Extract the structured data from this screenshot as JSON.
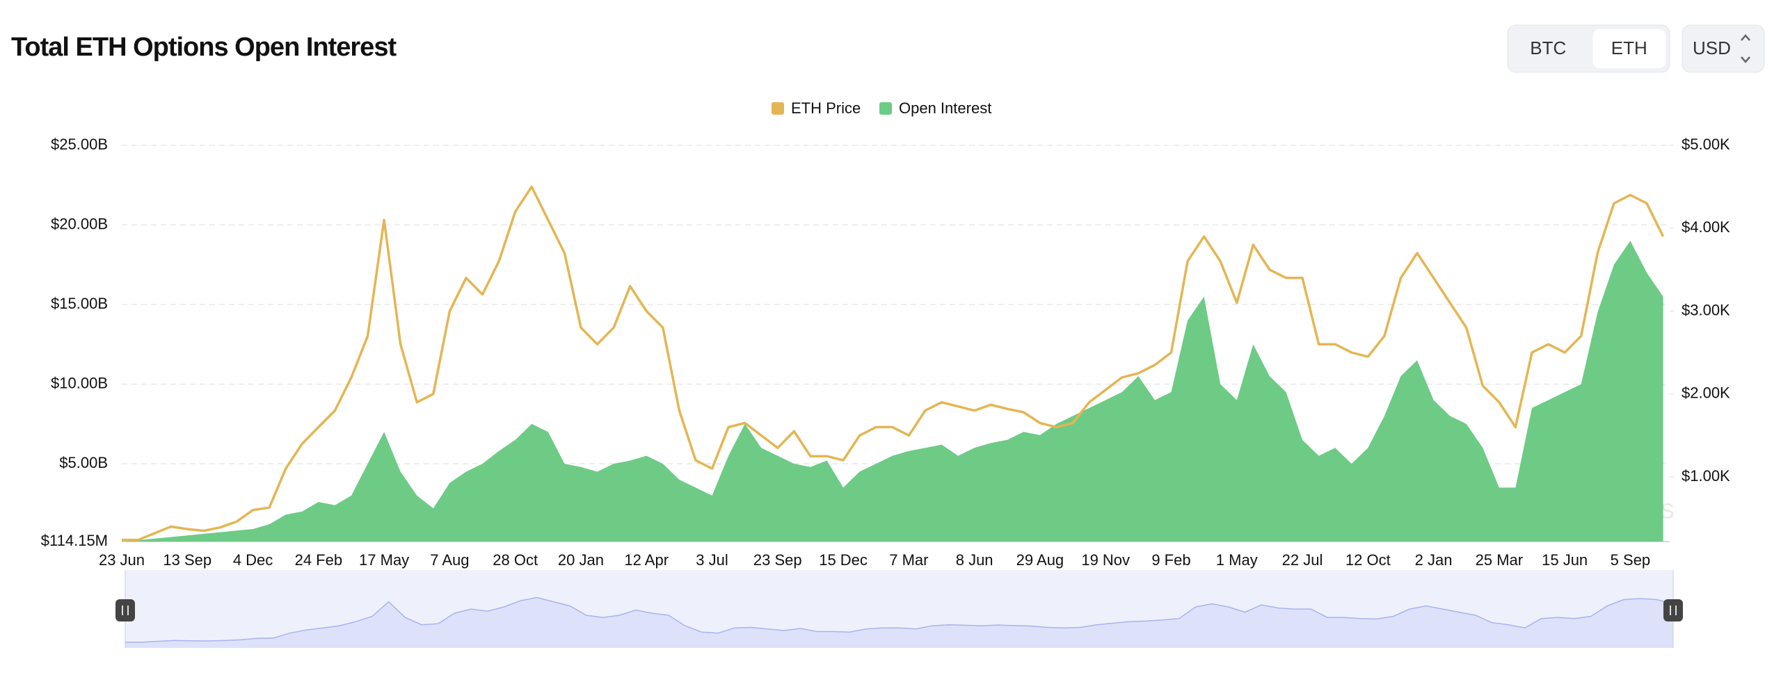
{
  "controls": {
    "coins": [
      "BTC",
      "ETH"
    ],
    "selected_coin": 1,
    "currency": "USD"
  },
  "chart_data": {
    "type": "combo",
    "title": "Total ETH Options Open Interest",
    "watermark": "coinglass",
    "categories": [
      "23 Jun",
      null,
      null,
      null,
      "13 Sep",
      null,
      null,
      null,
      "4 Dec",
      null,
      null,
      null,
      "24 Feb",
      null,
      null,
      null,
      "17 May",
      null,
      null,
      null,
      "7 Aug",
      null,
      null,
      null,
      "28 Oct",
      null,
      null,
      null,
      "20 Jan",
      null,
      null,
      null,
      "12 Apr",
      null,
      null,
      null,
      "3 Jul",
      null,
      null,
      null,
      "23 Sep",
      null,
      null,
      null,
      "15 Dec",
      null,
      null,
      null,
      "7 Mar",
      null,
      null,
      null,
      "8 Jun",
      null,
      null,
      null,
      "29 Aug",
      null,
      null,
      null,
      "19 Nov",
      null,
      null,
      null,
      "9 Feb",
      null,
      null,
      null,
      "1 May",
      null,
      null,
      null,
      "22 Jul",
      null,
      null,
      null,
      "12 Oct",
      null,
      null,
      null,
      "2 Jan",
      null,
      null,
      null,
      "25 Mar",
      null,
      null,
      null,
      "15 Jun",
      null,
      null,
      null,
      "5 Sep",
      null,
      null
    ],
    "series": [
      {
        "name": "ETH Price",
        "type": "line",
        "axis": "y2",
        "color": "#e3b653",
        "values": [
          0.24,
          0.24,
          0.32,
          0.4,
          0.37,
          0.35,
          0.39,
          0.46,
          0.6,
          0.63,
          1.1,
          1.4,
          1.6,
          1.8,
          2.2,
          2.7,
          4.1,
          2.6,
          1.9,
          2.0,
          3.0,
          3.4,
          3.2,
          3.6,
          4.2,
          4.5,
          4.1,
          3.7,
          2.8,
          2.6,
          2.8,
          3.3,
          3.0,
          2.8,
          1.8,
          1.2,
          1.1,
          1.6,
          1.65,
          1.5,
          1.35,
          1.55,
          1.25,
          1.25,
          1.2,
          1.5,
          1.6,
          1.6,
          1.5,
          1.8,
          1.9,
          1.85,
          1.8,
          1.87,
          1.82,
          1.78,
          1.65,
          1.6,
          1.65,
          1.9,
          2.05,
          2.2,
          2.25,
          2.35,
          2.5,
          3.6,
          3.9,
          3.6,
          3.1,
          3.8,
          3.5,
          3.4,
          3.4,
          2.6,
          2.6,
          2.5,
          2.45,
          2.7,
          3.4,
          3.7,
          3.4,
          3.1,
          2.8,
          2.1,
          1.9,
          1.6,
          2.5,
          2.6,
          2.5,
          2.7,
          3.7,
          4.3,
          4.4,
          4.3,
          3.9
        ]
      },
      {
        "name": "Open Interest",
        "type": "area",
        "axis": "y",
        "color": "#6dcb86",
        "values": [
          0.1,
          0.2,
          0.3,
          0.4,
          0.5,
          0.6,
          0.7,
          0.8,
          0.9,
          1.2,
          1.8,
          2.0,
          2.6,
          2.4,
          3.0,
          5.0,
          7.0,
          4.5,
          3.0,
          2.2,
          3.8,
          4.5,
          5.0,
          5.8,
          6.5,
          7.5,
          7.0,
          5.0,
          4.8,
          4.5,
          5.0,
          5.2,
          5.5,
          5.0,
          4.0,
          3.5,
          3.0,
          5.5,
          7.5,
          6.0,
          5.5,
          5.0,
          4.8,
          5.2,
          3.5,
          4.5,
          5.0,
          5.5,
          5.8,
          6.0,
          6.2,
          5.5,
          6.0,
          6.3,
          6.5,
          7.0,
          6.8,
          7.5,
          8.0,
          8.5,
          9.0,
          9.5,
          10.5,
          9.0,
          9.5,
          14.0,
          15.5,
          10.0,
          9.0,
          12.5,
          10.5,
          9.5,
          6.5,
          5.5,
          6.0,
          5.0,
          6.0,
          8.0,
          10.5,
          11.5,
          9.0,
          8.0,
          7.5,
          6.0,
          3.5,
          3.5,
          8.5,
          9.0,
          9.5,
          10.0,
          14.5,
          17.5,
          19.0,
          17.0,
          15.5
        ]
      }
    ],
    "ylim": [
      0.11415,
      25
    ],
    "yticks": [
      {
        "value": 0.11415,
        "label": "$114.15M"
      },
      {
        "value": 5,
        "label": "$5.00B"
      },
      {
        "value": 10,
        "label": "$10.00B"
      },
      {
        "value": 15,
        "label": "$15.00B"
      },
      {
        "value": 20,
        "label": "$20.00B"
      },
      {
        "value": 25,
        "label": "$25.00B"
      }
    ],
    "y2lim": [
      0.22,
      5
    ],
    "y2ticks": [
      {
        "value": 1,
        "label": "$1.00K"
      },
      {
        "value": 2,
        "label": "$2.00K"
      },
      {
        "value": 3,
        "label": "$3.00K"
      },
      {
        "value": 4,
        "label": "$4.00K"
      },
      {
        "value": 5,
        "label": "$5.00K"
      }
    ],
    "grid": true,
    "legend": "top"
  }
}
